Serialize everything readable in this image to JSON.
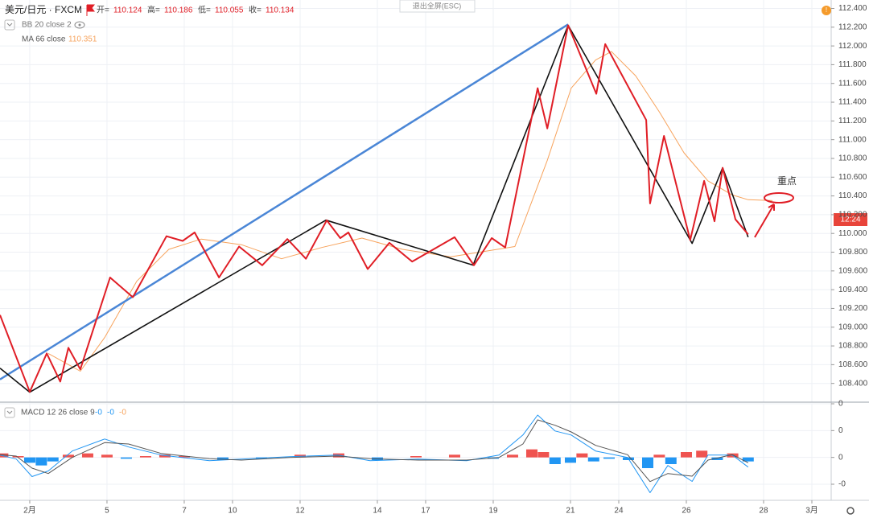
{
  "chart_data": {
    "type": "line",
    "symbol": "美元/日元 · FXCM",
    "ohlc": [
      {
        "label": "开=",
        "value": 110.124
      },
      {
        "label": "高=",
        "value": 110.186
      },
      {
        "label": "低=",
        "value": 110.055
      },
      {
        "label": "收=",
        "value": 110.134
      }
    ],
    "exit_button": "退出全屏(ESC)",
    "indicators": [
      {
        "name": "BB 20 close 2"
      },
      {
        "name": "MA 66 close",
        "value": 110.351,
        "color": "#f7a35c"
      }
    ],
    "price_badge": "12:24",
    "annotation": "重点",
    "xlim": [
      -0.77,
      20.75
    ],
    "xticks": [
      {
        "value": 0,
        "label": "2月"
      },
      {
        "value": 2,
        "label": "5"
      },
      {
        "value": 4,
        "label": "7"
      },
      {
        "value": 5.25,
        "label": "10"
      },
      {
        "value": 7,
        "label": "12"
      },
      {
        "value": 9,
        "label": "14"
      },
      {
        "value": 10.25,
        "label": "17"
      },
      {
        "value": 12,
        "label": "19"
      },
      {
        "value": 14,
        "label": "21"
      },
      {
        "value": 15.25,
        "label": "24"
      },
      {
        "value": 17,
        "label": "26"
      },
      {
        "value": 19,
        "label": "28"
      },
      {
        "value": 20.25,
        "label": "3月"
      }
    ],
    "ylim": [
      108.2,
      112.49
    ],
    "yticks": [
      {
        "value": 108.4,
        "label": "108.400"
      },
      {
        "value": 108.6,
        "label": "108.600"
      },
      {
        "value": 108.8,
        "label": "108.800"
      },
      {
        "value": 109.0,
        "label": "109.000"
      },
      {
        "value": 109.2,
        "label": "109.200"
      },
      {
        "value": 109.4,
        "label": "109.400"
      },
      {
        "value": 109.6,
        "label": "109.600"
      },
      {
        "value": 109.8,
        "label": "109.800"
      },
      {
        "value": 110.0,
        "label": "110.000"
      },
      {
        "value": 110.2,
        "label": "110.200"
      },
      {
        "value": 110.4,
        "label": "110.400"
      },
      {
        "value": 110.6,
        "label": "110.600"
      },
      {
        "value": 110.8,
        "label": "110.800"
      },
      {
        "value": 111.0,
        "label": "111.000"
      },
      {
        "value": 111.2,
        "label": "111.200"
      },
      {
        "value": 111.4,
        "label": "111.400"
      },
      {
        "value": 111.6,
        "label": "111.600"
      },
      {
        "value": 111.8,
        "label": "111.800"
      },
      {
        "value": 112.0,
        "label": "112.000"
      },
      {
        "value": 112.2,
        "label": "112.200"
      },
      {
        "value": 112.4,
        "label": "112.400"
      }
    ],
    "grid": true,
    "series": [
      {
        "name": "MA 66 close",
        "color": "#f7a35c",
        "width": 1,
        "x": [
          0.48,
          1.31,
          1.94,
          2.77,
          3.6,
          4.44,
          5.48,
          6.52,
          7.56,
          8.6,
          9.65,
          10.9,
          12.56,
          13.4,
          14.02,
          14.65,
          15.06,
          15.69,
          16.31,
          16.94,
          17.56,
          18.19,
          18.6,
          19.23
        ],
        "values": [
          108.72,
          108.53,
          108.89,
          109.49,
          109.83,
          109.94,
          109.88,
          109.73,
          109.85,
          109.95,
          109.83,
          109.75,
          109.86,
          110.78,
          111.55,
          111.85,
          111.94,
          111.68,
          111.29,
          110.86,
          110.56,
          110.41,
          110.36,
          110.35
        ]
      },
      {
        "color": "#4a86d6",
        "width": 2.5,
        "x": [
          -0.77,
          13.94
        ],
        "values": [
          108.443,
          112.23
        ]
      },
      {
        "color": "#111111",
        "width": 1.6,
        "x": [
          -0.77,
          0,
          7.67,
          11.48,
          13.94,
          17.15,
          17.94,
          18.6
        ],
        "values": [
          108.563,
          108.306,
          110.142,
          109.662,
          112.22,
          109.894,
          110.7,
          109.96
        ]
      },
      {
        "color": "#e01e26",
        "width": 2,
        "x": [
          -0.77,
          0,
          0.44,
          0.79,
          1.0,
          1.31,
          2.08,
          2.67,
          3.54,
          3.96,
          4.27,
          4.9,
          5.42,
          6.02,
          6.67,
          7.15,
          7.69,
          8.04,
          8.25,
          8.75,
          9.31,
          9.9,
          11.0,
          11.5,
          11.96,
          12.31,
          13.15,
          13.4,
          13.94,
          14.67,
          14.9,
          15.96,
          16.06,
          16.42,
          17.1,
          17.46,
          17.73,
          17.94,
          18.27,
          18.6
        ],
        "values": [
          109.13,
          108.31,
          108.72,
          108.42,
          108.78,
          108.55,
          109.53,
          109.32,
          109.97,
          109.92,
          110.01,
          109.53,
          109.86,
          109.66,
          109.94,
          109.73,
          110.14,
          109.95,
          110.01,
          109.62,
          109.9,
          109.7,
          109.96,
          109.66,
          109.95,
          109.85,
          111.55,
          111.12,
          112.22,
          111.49,
          112.02,
          111.21,
          110.32,
          111.04,
          109.93,
          110.56,
          110.13,
          110.7,
          110.15,
          109.99
        ]
      }
    ],
    "macd": {
      "title": "MACD 12 26 close 9",
      "value_labels": [
        {
          "text": "-0",
          "color": "#2196f3"
        },
        {
          "text": "-0",
          "color": "#2196f3"
        },
        {
          "text": "-0",
          "color": "#f7a35c"
        }
      ],
      "ylim": [
        -0.32,
        0.4
      ],
      "yticks": [
        {
          "value": -0.2,
          "label": "-0"
        },
        {
          "value": 0,
          "label": "0"
        },
        {
          "value": 0.2,
          "label": "0"
        },
        {
          "value": 0.4,
          "label": "0"
        }
      ],
      "up_color": "#ef5350",
      "down_color": "#2196f3",
      "histogram": {
        "x": [
          -0.7,
          -0.3,
          0,
          0.3,
          0.6,
          1,
          1.5,
          2,
          2.5,
          3,
          3.5,
          4,
          5,
          6,
          7,
          8,
          9,
          10,
          11,
          12,
          12.5,
          13,
          13.3,
          13.6,
          14,
          14.3,
          14.6,
          15,
          15.5,
          16,
          16.3,
          16.6,
          17,
          17.4,
          17.8,
          18.2,
          18.6
        ],
        "values": [
          0.03,
          0.01,
          -0.04,
          -0.06,
          -0.03,
          0.02,
          0.03,
          0.02,
          -0.01,
          0.01,
          0.02,
          0.01,
          -0.02,
          -0.01,
          0.02,
          0.03,
          -0.02,
          0.01,
          0.02,
          -0.01,
          0.02,
          0.06,
          0.04,
          -0.05,
          -0.04,
          0.03,
          -0.03,
          -0.01,
          -0.02,
          -0.08,
          0.02,
          -0.05,
          0.04,
          0.05,
          -0.02,
          0.03,
          -0.03
        ]
      },
      "series": [
        {
          "color": "#2196f3",
          "x": [
            -0.77,
            -0.35,
            0.06,
            0.48,
            1.1,
            1.94,
            2.56,
            3.4,
            4.65,
            5.48,
            6.73,
            7.98,
            8.81,
            10.06,
            11.31,
            12.15,
            12.77,
            13.15,
            13.6,
            14.02,
            14.65,
            15.48,
            16.06,
            16.52,
            17.15,
            17.56,
            18.19,
            18.6
          ],
          "values": [
            0.018,
            -0.012,
            -0.143,
            -0.101,
            0.048,
            0.137,
            0.078,
            0.018,
            -0.024,
            -0.012,
            0.006,
            0.018,
            -0.024,
            -0.012,
            -0.024,
            0.018,
            0.167,
            0.316,
            0.197,
            0.167,
            0.048,
            0,
            -0.263,
            -0.06,
            -0.179,
            0.018,
            0.018,
            -0.072
          ]
        },
        {
          "color": "#555555",
          "x": [
            -0.77,
            -0.35,
            0.06,
            0.48,
            1.1,
            1.94,
            2.56,
            3.4,
            4.65,
            5.48,
            6.73,
            7.98,
            8.81,
            10.06,
            11.31,
            12.15,
            12.77,
            13.15,
            13.6,
            14.02,
            14.65,
            15.48,
            16.06,
            16.52,
            17.15,
            17.56,
            18.19,
            18.6
          ],
          "values": [
            0.02,
            0.01,
            -0.08,
            -0.12,
            0.0,
            0.11,
            0.1,
            0.03,
            -0.01,
            -0.02,
            0,
            0.01,
            -0.01,
            -0.02,
            -0.02,
            0,
            0.1,
            0.28,
            0.24,
            0.19,
            0.09,
            0.02,
            -0.18,
            -0.12,
            -0.14,
            -0.02,
            0.02,
            -0.04
          ]
        }
      ]
    }
  }
}
